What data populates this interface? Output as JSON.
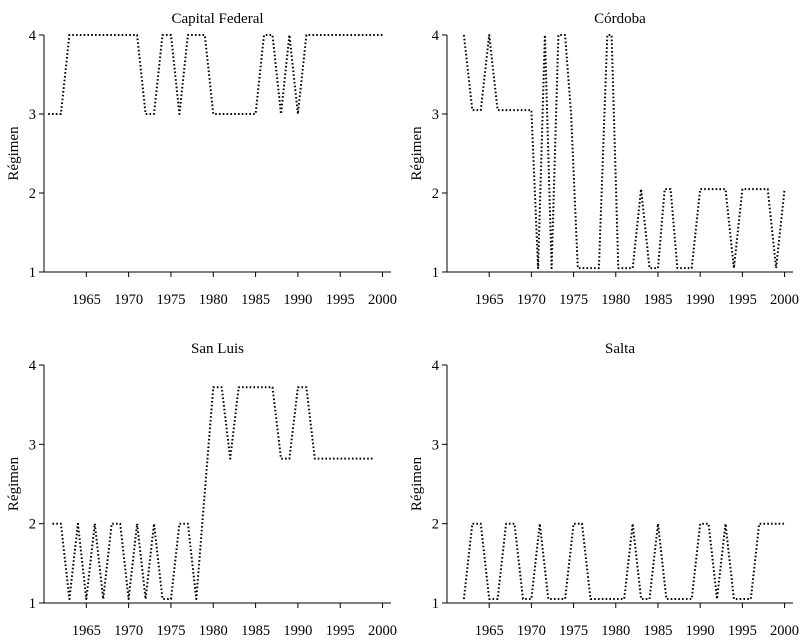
{
  "chart_data": [
    {
      "type": "line",
      "title": "Capital Federal",
      "ylabel": "Régimen",
      "xlabel": "",
      "xlim": [
        1960,
        2001
      ],
      "ylim": [
        1,
        4
      ],
      "x_ticks": [
        1965,
        1970,
        1975,
        1980,
        1985,
        1990,
        1995,
        2000
      ],
      "y_ticks": [
        1,
        2,
        3,
        4
      ],
      "grid": false,
      "line_style": "dotted",
      "x": [
        1960.5,
        1962,
        1963,
        1964,
        1965,
        1966,
        1967,
        1968,
        1969,
        1970,
        1971,
        1972,
        1973,
        1974,
        1975,
        1976,
        1977,
        1978,
        1979,
        1980,
        1981,
        1982,
        1983,
        1984,
        1985,
        1986,
        1987,
        1988,
        1989,
        1990,
        1991,
        1992,
        1993,
        1994,
        1995,
        1996,
        1997,
        1998,
        1999,
        2000
      ],
      "y": [
        3,
        3,
        4,
        4,
        4,
        4,
        4,
        4,
        4,
        4,
        4,
        3,
        3,
        4,
        4,
        3,
        4,
        4,
        4,
        3,
        3,
        3,
        3,
        3,
        3,
        4,
        4,
        3,
        4,
        3,
        4,
        4,
        4,
        4,
        4,
        4,
        4,
        4,
        4,
        4
      ]
    },
    {
      "type": "line",
      "title": "Córdoba",
      "ylabel": "Régimen",
      "xlabel": "",
      "xlim": [
        1960,
        2001
      ],
      "ylim": [
        1,
        4
      ],
      "x_ticks": [
        1965,
        1970,
        1975,
        1980,
        1985,
        1990,
        1995,
        2000
      ],
      "y_ticks": [
        1,
        2,
        3,
        4
      ],
      "grid": false,
      "line_style": "dotted",
      "x": [
        1962,
        1963,
        1964,
        1965,
        1966,
        1967,
        1968,
        1969,
        1970,
        1970.8,
        1971.6,
        1972.4,
        1973.2,
        1974,
        1974.7,
        1975.5,
        1976.3,
        1977,
        1978,
        1979,
        1979.5,
        1980.3,
        1981,
        1982,
        1983,
        1984,
        1985,
        1985.8,
        1986.5,
        1987.3,
        1988,
        1989,
        1990,
        1991,
        1992,
        1993,
        1994,
        1995,
        1996,
        1997,
        1998,
        1999,
        2000
      ],
      "y": [
        4,
        3.05,
        3.05,
        4,
        3.05,
        3.05,
        3.05,
        3.05,
        3.05,
        1.05,
        4,
        1.05,
        4,
        4,
        3,
        1.05,
        1.05,
        1.05,
        1.05,
        4,
        4,
        1.05,
        1.05,
        1.05,
        2.05,
        1.05,
        1.05,
        2.05,
        2.05,
        1.05,
        1.05,
        1.05,
        2.05,
        2.05,
        2.05,
        2.05,
        1.05,
        2.05,
        2.05,
        2.05,
        2.05,
        1.05,
        2.05
      ]
    },
    {
      "type": "line",
      "title": "San Luis",
      "ylabel": "Régimen",
      "xlabel": "",
      "xlim": [
        1960,
        2001
      ],
      "ylim": [
        1,
        4
      ],
      "x_ticks": [
        1965,
        1970,
        1975,
        1980,
        1985,
        1990,
        1995,
        2000
      ],
      "y_ticks": [
        1,
        2,
        3,
        4
      ],
      "grid": false,
      "line_style": "dotted",
      "x": [
        1961,
        1962,
        1963,
        1964,
        1965,
        1966,
        1967,
        1968,
        1969,
        1970,
        1971,
        1972,
        1973,
        1974,
        1975,
        1976,
        1977,
        1978,
        1979,
        1980,
        1981,
        1982,
        1983,
        1984,
        1985,
        1986,
        1987,
        1988,
        1989,
        1990,
        1991,
        1992,
        1993,
        1994,
        1995,
        1996,
        1997,
        1998,
        1999
      ],
      "y": [
        2,
        2,
        1.05,
        2,
        1.05,
        2,
        1.05,
        2,
        2,
        1.05,
        2,
        1.05,
        2,
        1.05,
        1.05,
        2,
        2,
        1.05,
        2.4,
        3.72,
        3.72,
        2.82,
        3.72,
        3.72,
        3.72,
        3.72,
        3.72,
        2.82,
        2.82,
        3.72,
        3.72,
        2.82,
        2.82,
        2.82,
        2.82,
        2.82,
        2.82,
        2.82,
        2.82
      ]
    },
    {
      "type": "line",
      "title": "Salta",
      "ylabel": "Régimen",
      "xlabel": "",
      "xlim": [
        1960,
        2001
      ],
      "ylim": [
        1,
        4
      ],
      "x_ticks": [
        1965,
        1970,
        1975,
        1980,
        1985,
        1990,
        1995,
        2000
      ],
      "y_ticks": [
        1,
        2,
        3,
        4
      ],
      "grid": false,
      "line_style": "dotted",
      "x": [
        1962,
        1963,
        1964,
        1965,
        1966,
        1967,
        1968,
        1969,
        1970,
        1971,
        1972,
        1973,
        1974,
        1975,
        1976,
        1977,
        1978,
        1979,
        1980,
        1981,
        1982,
        1983,
        1984,
        1985,
        1986,
        1987,
        1988,
        1989,
        1990,
        1991,
        1992,
        1993,
        1994,
        1995,
        1996,
        1997,
        1998,
        1999,
        2000
      ],
      "y": [
        1.05,
        2,
        2,
        1.05,
        1.05,
        2,
        2,
        1.05,
        1.05,
        2,
        1.05,
        1.05,
        1.05,
        2,
        2,
        1.05,
        1.05,
        1.05,
        1.05,
        1.05,
        2,
        1.05,
        1.05,
        2,
        1.05,
        1.05,
        1.05,
        1.05,
        2,
        2,
        1.05,
        2,
        1.05,
        1.05,
        1.05,
        2,
        2,
        2,
        2
      ]
    }
  ]
}
